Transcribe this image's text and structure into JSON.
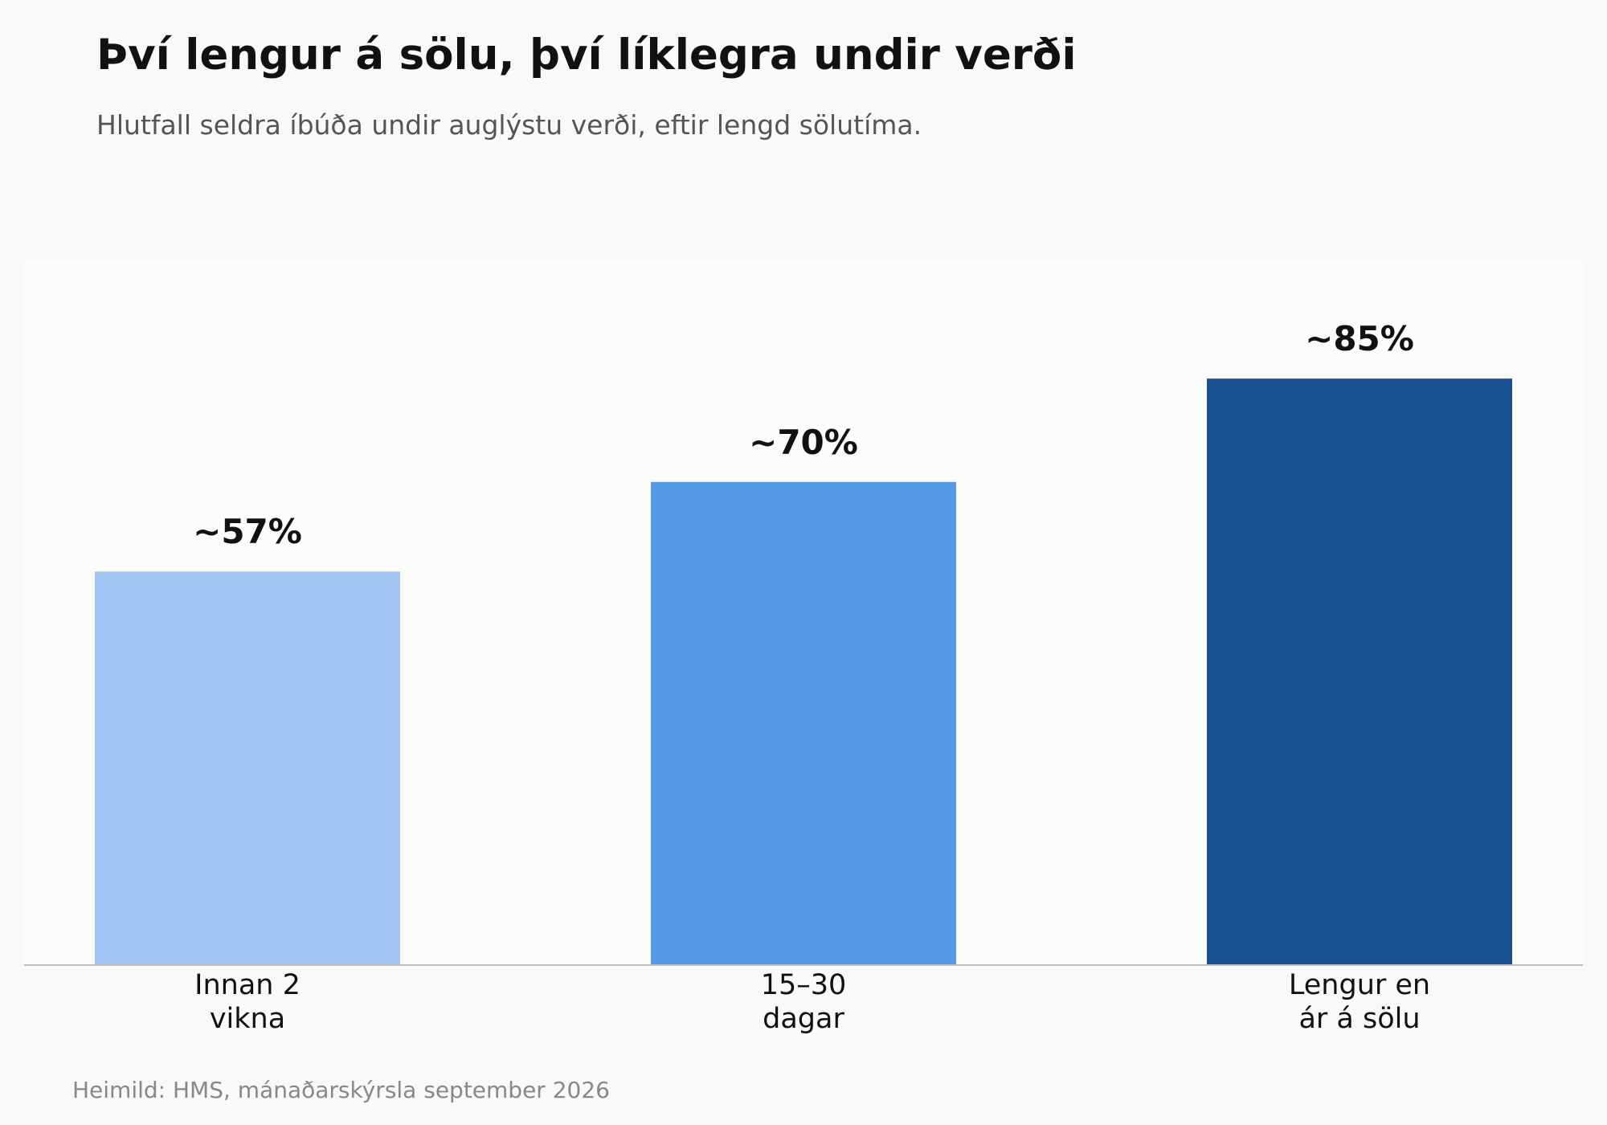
{
  "title": "Því lengur á sölu, því líklegra undir verði",
  "subtitle": "Hlutfall seldra íbúða undir auglýstu verði, eftir lengd sölutíma.",
  "source": "Heimild: HMS, mánaðarskýrsla september 2026",
  "chart_data": {
    "type": "bar",
    "title": "Því lengur á sölu, því líklegra undir verði",
    "subtitle": "Hlutfall seldra íbúða undir auglýstu verði, eftir lengd sölutíma.",
    "categories": [
      [
        "Innan 2",
        "vikna"
      ],
      [
        "15–30",
        "dagar"
      ],
      [
        "Lengur en",
        "ár á sölu"
      ]
    ],
    "values": [
      57,
      70,
      85
    ],
    "data_labels": [
      "~57%",
      "~70%",
      "~85%"
    ],
    "colors": [
      "#a1c5f3",
      "#5699e6",
      "#194f93"
    ],
    "ylim": [
      0,
      100
    ],
    "xlabel": "",
    "ylabel": "",
    "grid": false,
    "legend": "none"
  }
}
